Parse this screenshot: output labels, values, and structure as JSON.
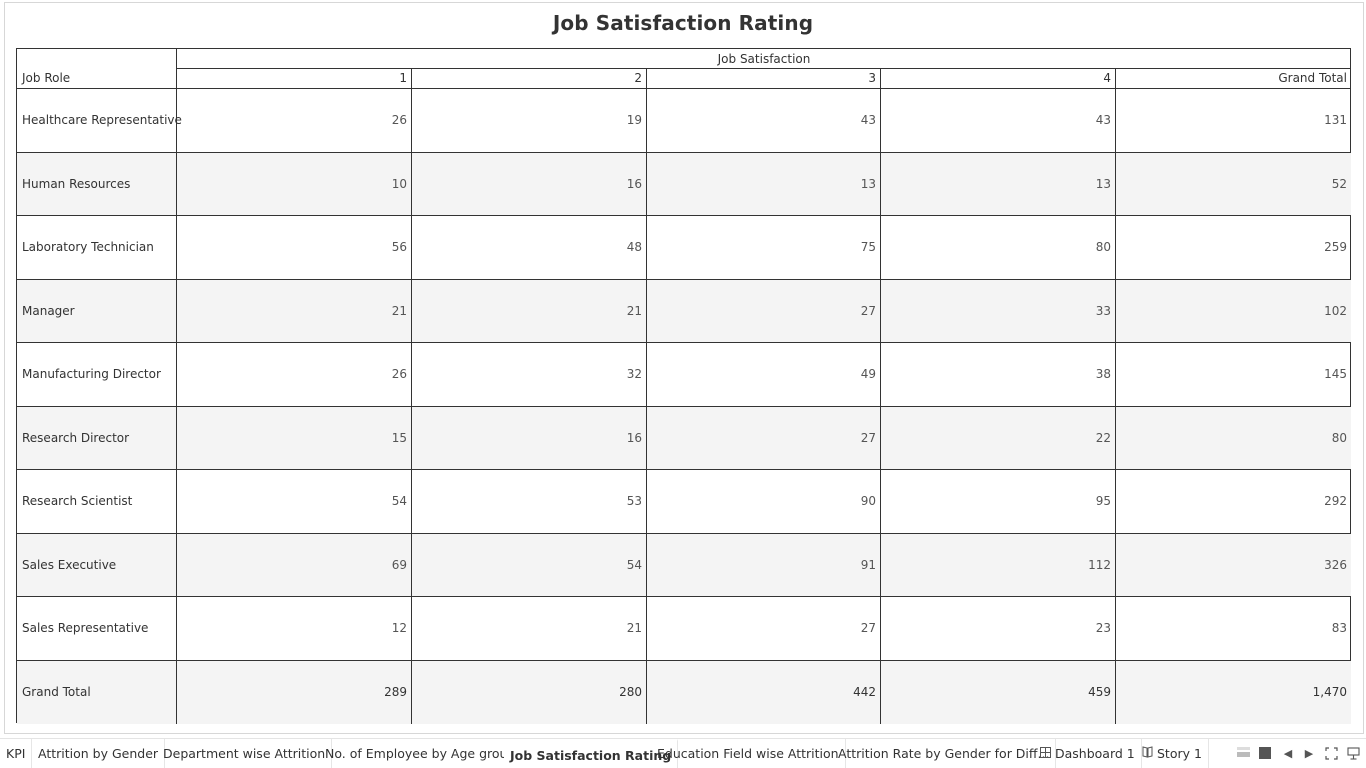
{
  "sheet": {
    "title": "Job Satisfaction Rating"
  },
  "table": {
    "column_group_title": "Job Satisfaction",
    "row_header_title": "Job Role",
    "columns": [
      "1",
      "2",
      "3",
      "4",
      "Grand Total"
    ],
    "rows": [
      {
        "label": "Healthcare Representative",
        "values": [
          "26",
          "19",
          "43",
          "43",
          "131"
        ]
      },
      {
        "label": "Human Resources",
        "values": [
          "10",
          "16",
          "13",
          "13",
          "52"
        ]
      },
      {
        "label": "Laboratory Technician",
        "values": [
          "56",
          "48",
          "75",
          "80",
          "259"
        ]
      },
      {
        "label": "Manager",
        "values": [
          "21",
          "21",
          "27",
          "33",
          "102"
        ]
      },
      {
        "label": "Manufacturing Director",
        "values": [
          "26",
          "32",
          "49",
          "38",
          "145"
        ]
      },
      {
        "label": "Research Director",
        "values": [
          "15",
          "16",
          "27",
          "22",
          "80"
        ]
      },
      {
        "label": "Research Scientist",
        "values": [
          "54",
          "53",
          "90",
          "95",
          "292"
        ]
      },
      {
        "label": "Sales Executive",
        "values": [
          "69",
          "54",
          "91",
          "112",
          "326"
        ]
      },
      {
        "label": "Sales Representative",
        "values": [
          "12",
          "21",
          "27",
          "23",
          "83"
        ]
      },
      {
        "label": "Grand Total",
        "values": [
          "289",
          "280",
          "442",
          "459",
          "1,470"
        ]
      }
    ]
  },
  "tabs": [
    {
      "label": "KPI",
      "icon": ""
    },
    {
      "label": "Attrition by Gender",
      "icon": ""
    },
    {
      "label": "Department wise Attrition",
      "icon": ""
    },
    {
      "label": "No. of Employee by Age group",
      "icon": ""
    },
    {
      "label": "Job Satisfaction Rating",
      "icon": "",
      "active": true
    },
    {
      "label": "Education Field wise Attrition",
      "icon": ""
    },
    {
      "label": "Attrition Rate by Gender for Diff...",
      "icon": ""
    },
    {
      "label": "Dashboard 1",
      "icon": "dashboard-icon"
    },
    {
      "label": "Story 1",
      "icon": "story-icon"
    }
  ],
  "controls": [
    "show-filmstrip-icon",
    "show-tabs-icon",
    "previous-sheet-icon",
    "next-sheet-icon",
    "presentation-mode-icon",
    "device-preview-icon"
  ]
}
